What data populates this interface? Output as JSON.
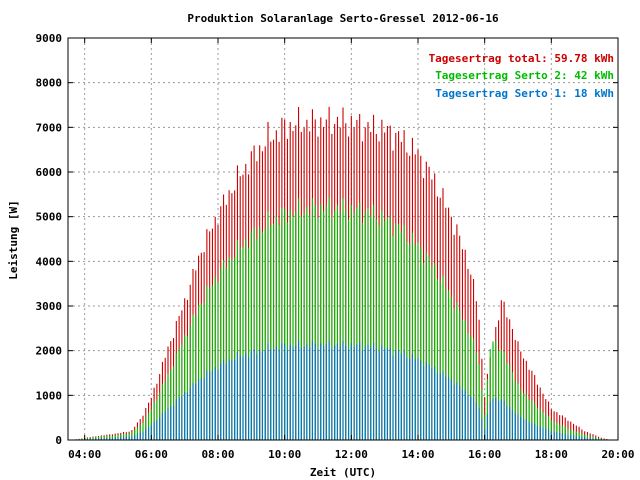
{
  "chart_data": {
    "type": "bar",
    "stacked": true,
    "title": "Produktion Solaranlage Serto-Gressel 2012-06-16",
    "xlabel": "Zeit (UTC)",
    "ylabel": "Leistung [W]",
    "xlim": [
      3.5,
      20.0
    ],
    "ylim": [
      0,
      9000
    ],
    "grid": true,
    "legend_position": "top-right",
    "x_ticks": [
      "04:00",
      "06:00",
      "08:00",
      "10:00",
      "12:00",
      "14:00",
      "16:00",
      "18:00",
      "20:00"
    ],
    "y_ticks": [
      "0",
      "1000",
      "2000",
      "3000",
      "4000",
      "5000",
      "6000",
      "7000",
      "8000",
      "9000"
    ],
    "series": [
      {
        "name": "Tagesertrag total: 59.78 kWh",
        "color": "#cc0000",
        "values_profile": [
          [
            3.5,
            0
          ],
          [
            3.8,
            20
          ],
          [
            4.0,
            50
          ],
          [
            4.5,
            100
          ],
          [
            5.0,
            150
          ],
          [
            5.4,
            200
          ],
          [
            5.7,
            500
          ],
          [
            6.0,
            950
          ],
          [
            6.5,
            2050
          ],
          [
            7.0,
            3100
          ],
          [
            7.5,
            4250
          ],
          [
            8.0,
            5050
          ],
          [
            8.5,
            5750
          ],
          [
            9.0,
            6300
          ],
          [
            9.5,
            6750
          ],
          [
            10.0,
            7000
          ],
          [
            10.5,
            7100
          ],
          [
            11.0,
            7100
          ],
          [
            11.5,
            7150
          ],
          [
            12.0,
            7100
          ],
          [
            12.5,
            7000
          ],
          [
            13.0,
            6950
          ],
          [
            13.5,
            6750
          ],
          [
            14.0,
            6400
          ],
          [
            14.5,
            5800
          ],
          [
            15.0,
            5000
          ],
          [
            15.5,
            4000
          ],
          [
            15.8,
            3000
          ],
          [
            16.0,
            1000
          ],
          [
            16.2,
            2000
          ],
          [
            16.5,
            3100
          ],
          [
            16.8,
            2600
          ],
          [
            17.0,
            2100
          ],
          [
            17.5,
            1400
          ],
          [
            18.0,
            700
          ],
          [
            18.5,
            450
          ],
          [
            19.0,
            200
          ],
          [
            19.5,
            50
          ],
          [
            19.8,
            0
          ],
          [
            20.0,
            0
          ]
        ]
      },
      {
        "name": "Tagesertrag Serto 2: 42 kWh",
        "color": "#00bb00",
        "values_profile": [
          [
            3.5,
            0
          ],
          [
            3.8,
            15
          ],
          [
            4.0,
            40
          ],
          [
            4.5,
            80
          ],
          [
            5.0,
            110
          ],
          [
            5.4,
            160
          ],
          [
            5.7,
            350
          ],
          [
            6.0,
            700
          ],
          [
            6.5,
            1450
          ],
          [
            7.0,
            2300
          ],
          [
            7.5,
            3100
          ],
          [
            8.0,
            3700
          ],
          [
            8.5,
            4200
          ],
          [
            9.0,
            4550
          ],
          [
            9.5,
            4850
          ],
          [
            10.0,
            5050
          ],
          [
            10.5,
            5150
          ],
          [
            11.0,
            5200
          ],
          [
            11.5,
            5200
          ],
          [
            12.0,
            5150
          ],
          [
            12.5,
            5100
          ],
          [
            13.0,
            4950
          ],
          [
            13.5,
            4700
          ],
          [
            14.0,
            4350
          ],
          [
            14.5,
            3850
          ],
          [
            15.0,
            3200
          ],
          [
            15.5,
            2500
          ],
          [
            15.8,
            1900
          ],
          [
            16.0,
            600
          ],
          [
            16.2,
            2300
          ],
          [
            16.5,
            2000
          ],
          [
            16.8,
            1600
          ],
          [
            17.0,
            1200
          ],
          [
            17.5,
            800
          ],
          [
            18.0,
            450
          ],
          [
            18.5,
            250
          ],
          [
            19.0,
            120
          ],
          [
            19.5,
            30
          ],
          [
            19.8,
            0
          ],
          [
            20.0,
            0
          ]
        ]
      },
      {
        "name": "Tagesertrag Serto 1: 18 kWh",
        "color": "#0077cc",
        "values_profile": [
          [
            3.5,
            0
          ],
          [
            3.8,
            8
          ],
          [
            4.0,
            20
          ],
          [
            4.5,
            40
          ],
          [
            5.0,
            55
          ],
          [
            5.4,
            80
          ],
          [
            5.7,
            170
          ],
          [
            6.0,
            330
          ],
          [
            6.5,
            700
          ],
          [
            7.0,
            1050
          ],
          [
            7.5,
            1400
          ],
          [
            8.0,
            1650
          ],
          [
            8.5,
            1850
          ],
          [
            9.0,
            1950
          ],
          [
            9.5,
            2050
          ],
          [
            10.0,
            2100
          ],
          [
            10.5,
            2120
          ],
          [
            11.0,
            2130
          ],
          [
            11.5,
            2130
          ],
          [
            12.0,
            2120
          ],
          [
            12.5,
            2100
          ],
          [
            13.0,
            2050
          ],
          [
            13.5,
            1950
          ],
          [
            14.0,
            1800
          ],
          [
            14.5,
            1600
          ],
          [
            15.0,
            1350
          ],
          [
            15.5,
            1050
          ],
          [
            15.8,
            800
          ],
          [
            16.0,
            250
          ],
          [
            16.2,
            950
          ],
          [
            16.5,
            900
          ],
          [
            16.8,
            700
          ],
          [
            17.0,
            550
          ],
          [
            17.5,
            350
          ],
          [
            18.0,
            200
          ],
          [
            18.5,
            120
          ],
          [
            19.0,
            60
          ],
          [
            19.5,
            15
          ],
          [
            19.8,
            0
          ],
          [
            20.0,
            0
          ]
        ]
      }
    ]
  },
  "colors": {
    "total": "#cc0000",
    "serto2": "#00bb00",
    "serto1": "#0077cc",
    "grid": "#999999",
    "axis": "#000000"
  }
}
